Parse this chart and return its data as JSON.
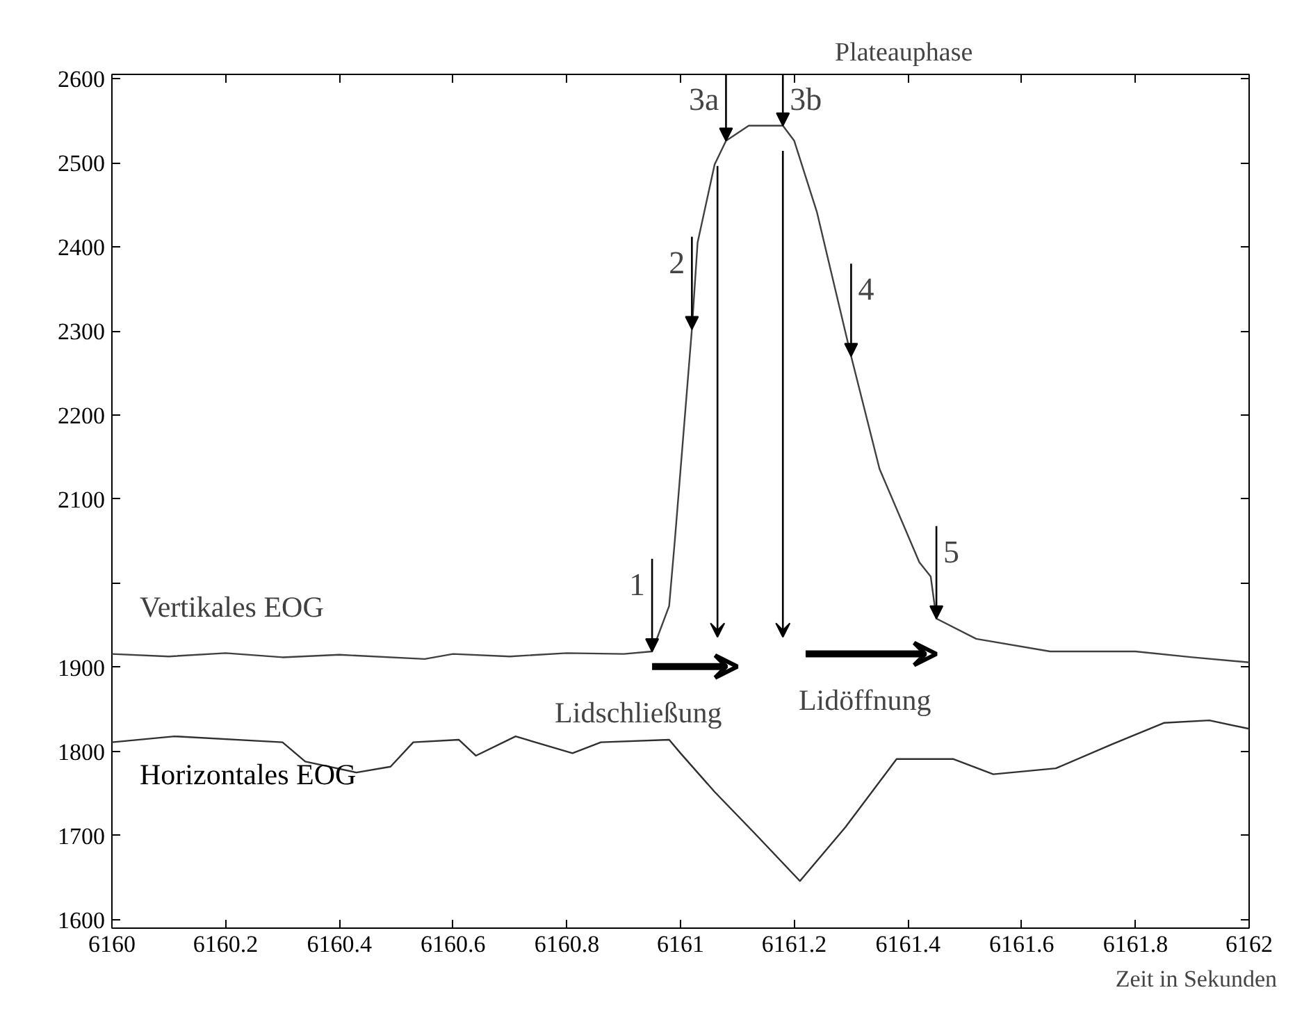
{
  "chart_data": {
    "type": "line",
    "xlabel": "Zeit in Sekunden",
    "xlim": [
      6160,
      6162
    ],
    "ylim": [
      1590,
      2605
    ],
    "xticks": [
      6160,
      6160.2,
      6160.4,
      6160.6,
      6160.8,
      6161,
      6161.2,
      6161.4,
      6161.6,
      6161.8,
      6162
    ],
    "yticks": [
      1600,
      1700,
      1800,
      1900,
      {
        "value": 2000,
        "label": null
      },
      2100,
      2200,
      2300,
      2400,
      2500,
      2600
    ],
    "grid": false,
    "marker": "none",
    "line_style": "solid",
    "series": [
      {
        "name": "Vertikales EOG",
        "color": "#404040",
        "x": [
          6160,
          6160.1,
          6160.2,
          6160.3,
          6160.4,
          6160.55,
          6160.6,
          6160.7,
          6160.8,
          6160.9,
          6160.95,
          6160.98,
          6160.99,
          6161.02,
          6161.03,
          6161.06,
          6161.08,
          6161.12,
          6161.18,
          6161.2,
          6161.24,
          6161.3,
          6161.35,
          6161.42,
          6161.44,
          6161.45,
          6161.52,
          6161.65,
          6161.8,
          6161.9,
          6162
        ],
        "values": [
          1916,
          1913,
          1917,
          1912,
          1915,
          1910,
          1916,
          1913,
          1917,
          1916,
          1919,
          1973,
          2051,
          2302,
          2405,
          2498,
          2526,
          2544,
          2544,
          2526,
          2441,
          2270,
          2136,
          2025,
          2008,
          1958,
          1934,
          1919,
          1919,
          1912,
          1906
        ]
      },
      {
        "name": "Horizontales EOG",
        "color": "#303030",
        "x": [
          6160,
          6160.11,
          6160.3,
          6160.34,
          6160.43,
          6160.49,
          6160.53,
          6160.61,
          6160.64,
          6160.71,
          6160.81,
          6160.86,
          6160.98,
          6161,
          6161.06,
          6161.13,
          6161.21,
          6161.29,
          6161.38,
          6161.48,
          6161.55,
          6161.66,
          6161.76,
          6161.85,
          6161.93,
          6162
        ],
        "values": [
          1811,
          1818,
          1811,
          1788,
          1775,
          1782,
          1811,
          1814,
          1795,
          1818,
          1798,
          1811,
          1814,
          1798,
          1752,
          1703,
          1646,
          1710,
          1791,
          1791,
          1773,
          1780,
          1809,
          1834,
          1837,
          1827
        ]
      }
    ],
    "annotations": [
      {
        "text": "1",
        "x": 6160.95,
        "y": 1919
      },
      {
        "text": "2",
        "x": 6161.02,
        "y": 2302
      },
      {
        "text": "3a",
        "x": 6161.08,
        "y": 2526
      },
      {
        "text": "3b",
        "x": 6161.18,
        "y": 2544
      },
      {
        "text": "4",
        "x": 6161.3,
        "y": 2270
      },
      {
        "text": "5",
        "x": 6161.45,
        "y": 1958
      },
      "Lidschließung",
      "Lidöffnung",
      "Plateauphase"
    ]
  }
}
